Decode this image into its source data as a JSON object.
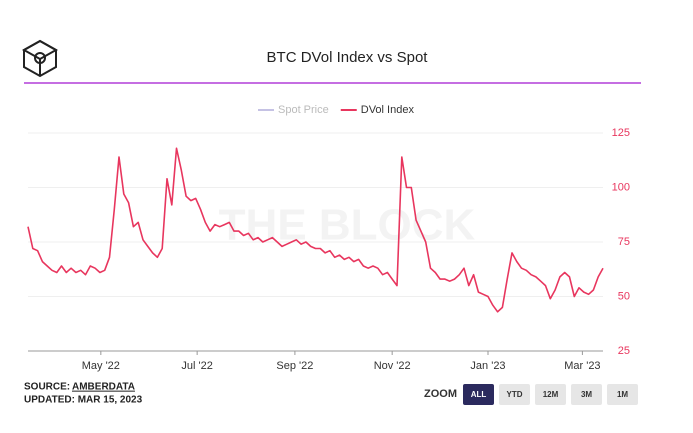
{
  "chart_data": {
    "type": "line",
    "title": "BTC DVol Index vs Spot",
    "series": [
      {
        "name": "Spot Price",
        "color": "#c5c2e4",
        "visible": false
      },
      {
        "name": "DVol Index",
        "color": "#e8365e",
        "visible": true,
        "values": [
          82,
          72,
          71,
          66,
          64,
          62,
          61,
          64,
          61,
          63,
          61,
          62,
          60,
          64,
          63,
          61,
          62,
          68,
          90,
          114,
          97,
          93,
          82,
          84,
          76,
          73,
          70,
          68,
          72,
          104,
          92,
          118,
          108,
          96,
          94,
          95,
          90,
          84,
          80,
          83,
          82,
          83,
          84,
          80,
          80,
          78,
          79,
          76,
          77,
          75,
          76,
          77,
          75,
          73,
          74,
          75,
          76,
          74,
          75,
          73,
          72,
          72,
          70,
          71,
          68,
          69,
          67,
          68,
          66,
          67,
          64,
          63,
          64,
          63,
          60,
          61,
          58,
          55,
          114,
          100,
          100,
          85,
          80,
          75,
          63,
          61,
          58,
          58,
          57,
          58,
          60,
          63,
          55,
          60,
          52,
          51,
          50,
          46,
          43,
          45,
          58,
          70,
          66,
          63,
          62,
          60,
          59,
          57,
          55,
          49,
          53,
          59,
          61,
          59,
          50,
          54,
          52,
          51,
          53,
          59,
          63
        ]
      }
    ],
    "xlim": [
      0,
      120
    ],
    "xticks": [
      {
        "value": 15.2,
        "label": "May '22"
      },
      {
        "value": 35.3,
        "label": "Jul '22"
      },
      {
        "value": 55.7,
        "label": "Sep '22"
      },
      {
        "value": 76.0,
        "label": "Nov '22"
      },
      {
        "value": 96.0,
        "label": "Jan '23"
      },
      {
        "value": 115.7,
        "label": "Mar '23"
      }
    ],
    "ylim": [
      25,
      125
    ],
    "yticks": [
      25,
      50,
      75,
      100,
      125
    ],
    "grid": true,
    "y_axis_side": "right",
    "watermark": "THE BLOCK"
  },
  "footer": {
    "source_label": "SOURCE:",
    "source": "AMBERDATA",
    "updated": "UPDATED: MAR 15, 2023"
  },
  "zoom": {
    "label": "ZOOM",
    "buttons": [
      "ALL",
      "YTD",
      "12M",
      "3M",
      "1M"
    ],
    "active": 0
  }
}
